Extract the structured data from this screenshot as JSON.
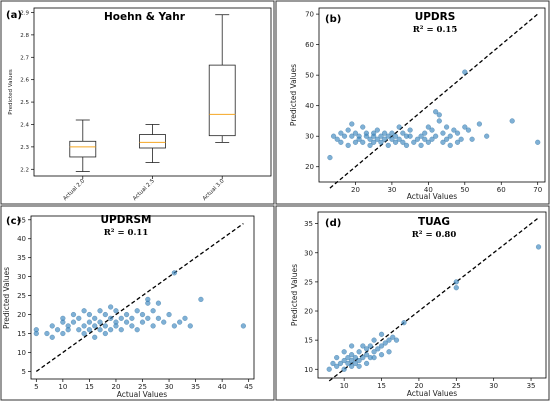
{
  "chart_data": [
    {
      "id": "a",
      "type": "box",
      "panel_label": "(a)",
      "title": "Hoehn & Yahr",
      "ylabel": "Predicted Values",
      "xlabel": "",
      "ylim": [
        2.17,
        2.92
      ],
      "yticks": [
        "2.2",
        "2.3",
        "2.4",
        "2.5",
        "2.6",
        "2.7",
        "2.8",
        "2.9"
      ],
      "categories": [
        "Actual 2.0",
        "Actual 2.5",
        "Actual 3.0"
      ],
      "boxes": [
        {
          "min": 2.19,
          "q1": 2.255,
          "median": 2.3,
          "q3": 2.325,
          "max": 2.42
        },
        {
          "min": 2.23,
          "q1": 2.295,
          "median": 2.32,
          "q3": 2.355,
          "max": 2.4
        },
        {
          "min": 2.32,
          "q1": 2.35,
          "median": 2.445,
          "q3": 2.665,
          "max": 2.89
        }
      ],
      "colors": {
        "median": "#f5a623",
        "box": "#222222"
      }
    },
    {
      "id": "b",
      "type": "scatter",
      "panel_label": "(b)",
      "title": "UPDRS",
      "r2": "R² = 0.15",
      "xlabel": "Actual Values",
      "ylabel": "Predicted Values",
      "xlim": [
        10,
        72
      ],
      "ylim": [
        15,
        72
      ],
      "xticks": [
        "20",
        "30",
        "40",
        "50",
        "60",
        "70"
      ],
      "yticks": [
        "20",
        "30",
        "40",
        "50",
        "60",
        "70"
      ],
      "reference_line": [
        [
          13,
          13
        ],
        [
          70,
          70
        ]
      ],
      "points": [
        [
          13,
          23
        ],
        [
          14,
          30
        ],
        [
          15,
          29
        ],
        [
          16,
          31
        ],
        [
          16,
          28
        ],
        [
          17,
          30
        ],
        [
          18,
          32
        ],
        [
          18,
          27
        ],
        [
          19,
          30
        ],
        [
          19,
          34
        ],
        [
          20,
          28
        ],
        [
          20,
          31
        ],
        [
          21,
          30
        ],
        [
          21,
          29
        ],
        [
          22,
          33
        ],
        [
          22,
          28
        ],
        [
          23,
          30
        ],
        [
          23,
          31
        ],
        [
          24,
          29
        ],
        [
          24,
          27
        ],
        [
          25,
          30
        ],
        [
          25,
          31
        ],
        [
          25,
          28
        ],
        [
          26,
          29
        ],
        [
          26,
          32
        ],
        [
          27,
          30
        ],
        [
          27,
          28
        ],
        [
          28,
          31
        ],
        [
          28,
          29
        ],
        [
          29,
          30
        ],
        [
          29,
          27
        ],
        [
          30,
          29
        ],
        [
          30,
          31
        ],
        [
          31,
          28
        ],
        [
          31,
          30
        ],
        [
          32,
          29
        ],
        [
          32,
          33
        ],
        [
          33,
          31
        ],
        [
          33,
          28
        ],
        [
          34,
          30
        ],
        [
          34,
          27
        ],
        [
          35,
          30
        ],
        [
          35,
          32
        ],
        [
          36,
          28
        ],
        [
          37,
          29
        ],
        [
          38,
          30
        ],
        [
          38,
          27
        ],
        [
          39,
          31
        ],
        [
          39,
          29
        ],
        [
          40,
          33
        ],
        [
          40,
          28
        ],
        [
          41,
          32
        ],
        [
          41,
          29
        ],
        [
          42,
          38
        ],
        [
          42,
          30
        ],
        [
          43,
          37
        ],
        [
          43,
          35
        ],
        [
          44,
          31
        ],
        [
          44,
          28
        ],
        [
          45,
          29
        ],
        [
          45,
          33
        ],
        [
          46,
          27
        ],
        [
          46,
          30
        ],
        [
          47,
          32
        ],
        [
          48,
          31
        ],
        [
          48,
          28
        ],
        [
          49,
          29
        ],
        [
          50,
          33
        ],
        [
          50,
          51
        ],
        [
          51,
          32
        ],
        [
          52,
          29
        ],
        [
          54,
          34
        ],
        [
          56,
          30
        ],
        [
          63,
          35
        ],
        [
          70,
          28
        ]
      ],
      "colors": {
        "point": "#3b86be"
      }
    },
    {
      "id": "c",
      "type": "scatter",
      "panel_label": "(c)",
      "title": "UPDRSM",
      "r2": "R² = 0.11",
      "xlabel": "Actual Values",
      "ylabel": "Predicted Values",
      "xlim": [
        4,
        46
      ],
      "ylim": [
        3,
        46
      ],
      "xticks": [
        "5",
        "10",
        "15",
        "20",
        "25",
        "30",
        "35",
        "40",
        "45"
      ],
      "yticks": [
        "5",
        "10",
        "15",
        "20",
        "25",
        "30",
        "35",
        "40",
        "45"
      ],
      "reference_line": [
        [
          5,
          5
        ],
        [
          44,
          44
        ]
      ],
      "points": [
        [
          5,
          15
        ],
        [
          5,
          16
        ],
        [
          7,
          15
        ],
        [
          8,
          17
        ],
        [
          8,
          14
        ],
        [
          9,
          16
        ],
        [
          10,
          18
        ],
        [
          10,
          15
        ],
        [
          10,
          19
        ],
        [
          11,
          17
        ],
        [
          11,
          16
        ],
        [
          12,
          20
        ],
        [
          12,
          18
        ],
        [
          13,
          16
        ],
        [
          13,
          19
        ],
        [
          14,
          17
        ],
        [
          14,
          15
        ],
        [
          14,
          21
        ],
        [
          15,
          18
        ],
        [
          15,
          16
        ],
        [
          15,
          20
        ],
        [
          16,
          17
        ],
        [
          16,
          19
        ],
        [
          16,
          14
        ],
        [
          17,
          18
        ],
        [
          17,
          16
        ],
        [
          17,
          21
        ],
        [
          18,
          17
        ],
        [
          18,
          20
        ],
        [
          18,
          15
        ],
        [
          19,
          19
        ],
        [
          19,
          16
        ],
        [
          19,
          22
        ],
        [
          20,
          18
        ],
        [
          20,
          17
        ],
        [
          20,
          21
        ],
        [
          21,
          19
        ],
        [
          21,
          16
        ],
        [
          22,
          18
        ],
        [
          22,
          20
        ],
        [
          23,
          17
        ],
        [
          23,
          19
        ],
        [
          24,
          16
        ],
        [
          24,
          21
        ],
        [
          25,
          18
        ],
        [
          25,
          20
        ],
        [
          26,
          19
        ],
        [
          26,
          23
        ],
        [
          26,
          24
        ],
        [
          27,
          17
        ],
        [
          27,
          21
        ],
        [
          28,
          19
        ],
        [
          28,
          23
        ],
        [
          29,
          18
        ],
        [
          30,
          20
        ],
        [
          31,
          17
        ],
        [
          31,
          31
        ],
        [
          32,
          18
        ],
        [
          33,
          19
        ],
        [
          34,
          17
        ],
        [
          36,
          24
        ],
        [
          44,
          17
        ]
      ],
      "colors": {
        "point": "#3b86be"
      }
    },
    {
      "id": "d",
      "type": "scatter",
      "panel_label": "(d)",
      "title": "TUAG",
      "r2": "R² = 0.80",
      "xlabel": "Actual Values",
      "ylabel": "Predicted Values",
      "xlim": [
        6.5,
        37
      ],
      "ylim": [
        8.5,
        37
      ],
      "xticks": [
        "10",
        "15",
        "20",
        "25",
        "30",
        "35"
      ],
      "yticks": [
        "10",
        "15",
        "20",
        "25",
        "30",
        "35"
      ],
      "reference_line": [
        [
          8,
          8
        ],
        [
          36,
          36
        ]
      ],
      "points": [
        [
          8,
          10
        ],
        [
          8.5,
          11
        ],
        [
          9,
          10.5
        ],
        [
          9,
          12
        ],
        [
          9.5,
          11
        ],
        [
          10,
          10
        ],
        [
          10,
          11.5
        ],
        [
          10,
          13
        ],
        [
          10.5,
          11
        ],
        [
          10.5,
          12
        ],
        [
          11,
          10.5
        ],
        [
          11,
          11.5
        ],
        [
          11,
          12.5
        ],
        [
          11,
          14
        ],
        [
          11.5,
          11
        ],
        [
          11.5,
          12
        ],
        [
          12,
          11.5
        ],
        [
          12,
          13
        ],
        [
          12,
          10.5
        ],
        [
          12.5,
          12
        ],
        [
          12.5,
          14
        ],
        [
          13,
          12.5
        ],
        [
          13,
          11
        ],
        [
          13,
          13.5
        ],
        [
          13.5,
          12
        ],
        [
          13.5,
          14
        ],
        [
          14,
          13
        ],
        [
          14,
          12
        ],
        [
          14,
          15
        ],
        [
          14.5,
          13.5
        ],
        [
          15,
          14
        ],
        [
          15,
          12.5
        ],
        [
          15,
          16
        ],
        [
          15.5,
          14.5
        ],
        [
          16,
          15
        ],
        [
          16,
          13
        ],
        [
          16.5,
          15.5
        ],
        [
          17,
          15
        ],
        [
          18,
          18
        ],
        [
          25,
          24
        ],
        [
          25,
          25
        ],
        [
          36,
          31
        ]
      ],
      "colors": {
        "point": "#3b86be"
      }
    }
  ]
}
